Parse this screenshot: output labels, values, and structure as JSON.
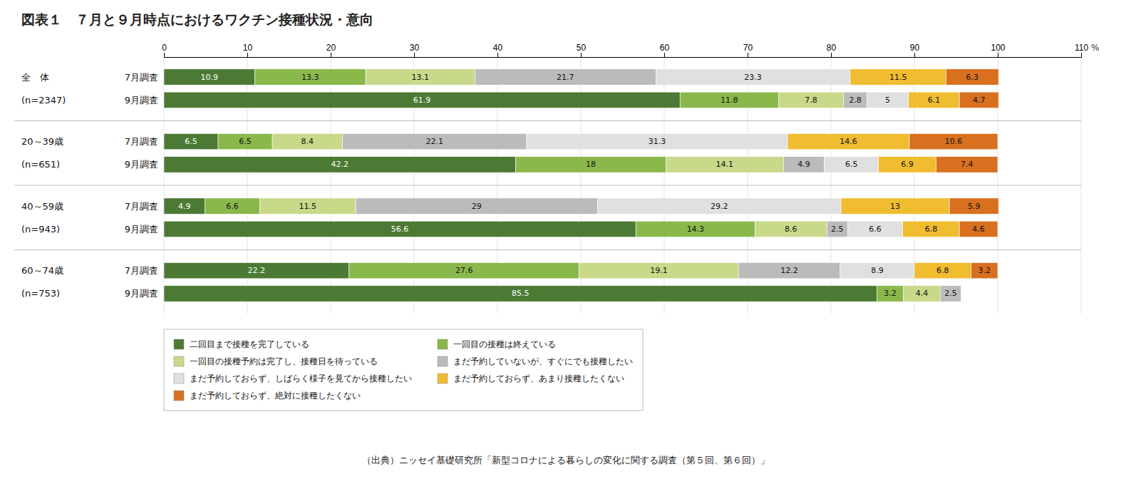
{
  "chart_data": {
    "type": "bar",
    "orientation": "horizontal",
    "stacked": true,
    "data_labels": true,
    "grid": true,
    "legend": "bottom",
    "title": "図表１　７月と９月時点におけるワクチン接種状況・意向",
    "footnote": "（出典）ニッセイ基礎研究所「新型コロナによる暮らしの変化に関する調査（第５回、第６回）」",
    "xlabel": "%",
    "categories": [
      [
        "全　体",
        "7月調査"
      ],
      [
        "(n=2347)",
        "9月調査"
      ],
      [
        "20～39歳",
        "7月調査"
      ],
      [
        "(n=651)",
        "9月調査"
      ],
      [
        "40～59歳",
        "7月調査"
      ],
      [
        "(n=943)",
        "9月調査"
      ],
      [
        "60～74歳",
        "7月調査"
      ],
      [
        "(n=753)",
        "9月調査"
      ]
    ],
    "series": [
      {
        "name": "二回目まで接種を完了している",
        "color": "#4c7a34",
        "values": [
          10.9,
          61.9,
          6.5,
          42.2,
          4.9,
          56.6,
          22.2,
          85.5
        ]
      },
      {
        "name": "一回目の接種は終えている",
        "color": "#8ab84a",
        "values": [
          13.3,
          11.8,
          6.5,
          18.0,
          6.6,
          14.3,
          27.6,
          3.2
        ]
      },
      {
        "name": "一回目の接種予約は完了し、接種日を待っている",
        "color": "#c8d98a",
        "values": [
          13.1,
          7.8,
          8.4,
          14.1,
          11.5,
          8.6,
          19.1,
          4.4
        ]
      },
      {
        "name": "まだ予約していないが、すぐにでも接種したい",
        "color": "#bbbbbb",
        "values": [
          21.7,
          2.8,
          22.1,
          4.9,
          29.0,
          2.5,
          12.2,
          2.5
        ]
      },
      {
        "name": "まだ予約しておらず、しばらく様子を見てから接種したい",
        "color": "#e0e0e0",
        "values": [
          23.3,
          5.0,
          31.3,
          6.5,
          29.2,
          6.6,
          8.9,
          0.0
        ]
      },
      {
        "name": "まだ予約しておらず、あまり接種したくない",
        "color": "#f0bc30",
        "values": [
          11.5,
          6.1,
          14.6,
          6.9,
          13.0,
          6.8,
          6.8,
          0.0
        ]
      },
      {
        "name": "まだ予約しておらず、絶対に接種したくない",
        "color": "#d87020",
        "values": [
          6.3,
          4.7,
          10.6,
          7.4,
          5.9,
          4.6,
          3.2,
          0.0
        ]
      }
    ],
    "xlim": [
      0,
      110
    ],
    "xticks": [
      0,
      10,
      20,
      30,
      40,
      50,
      60,
      70,
      80,
      90,
      100,
      110
    ]
  }
}
